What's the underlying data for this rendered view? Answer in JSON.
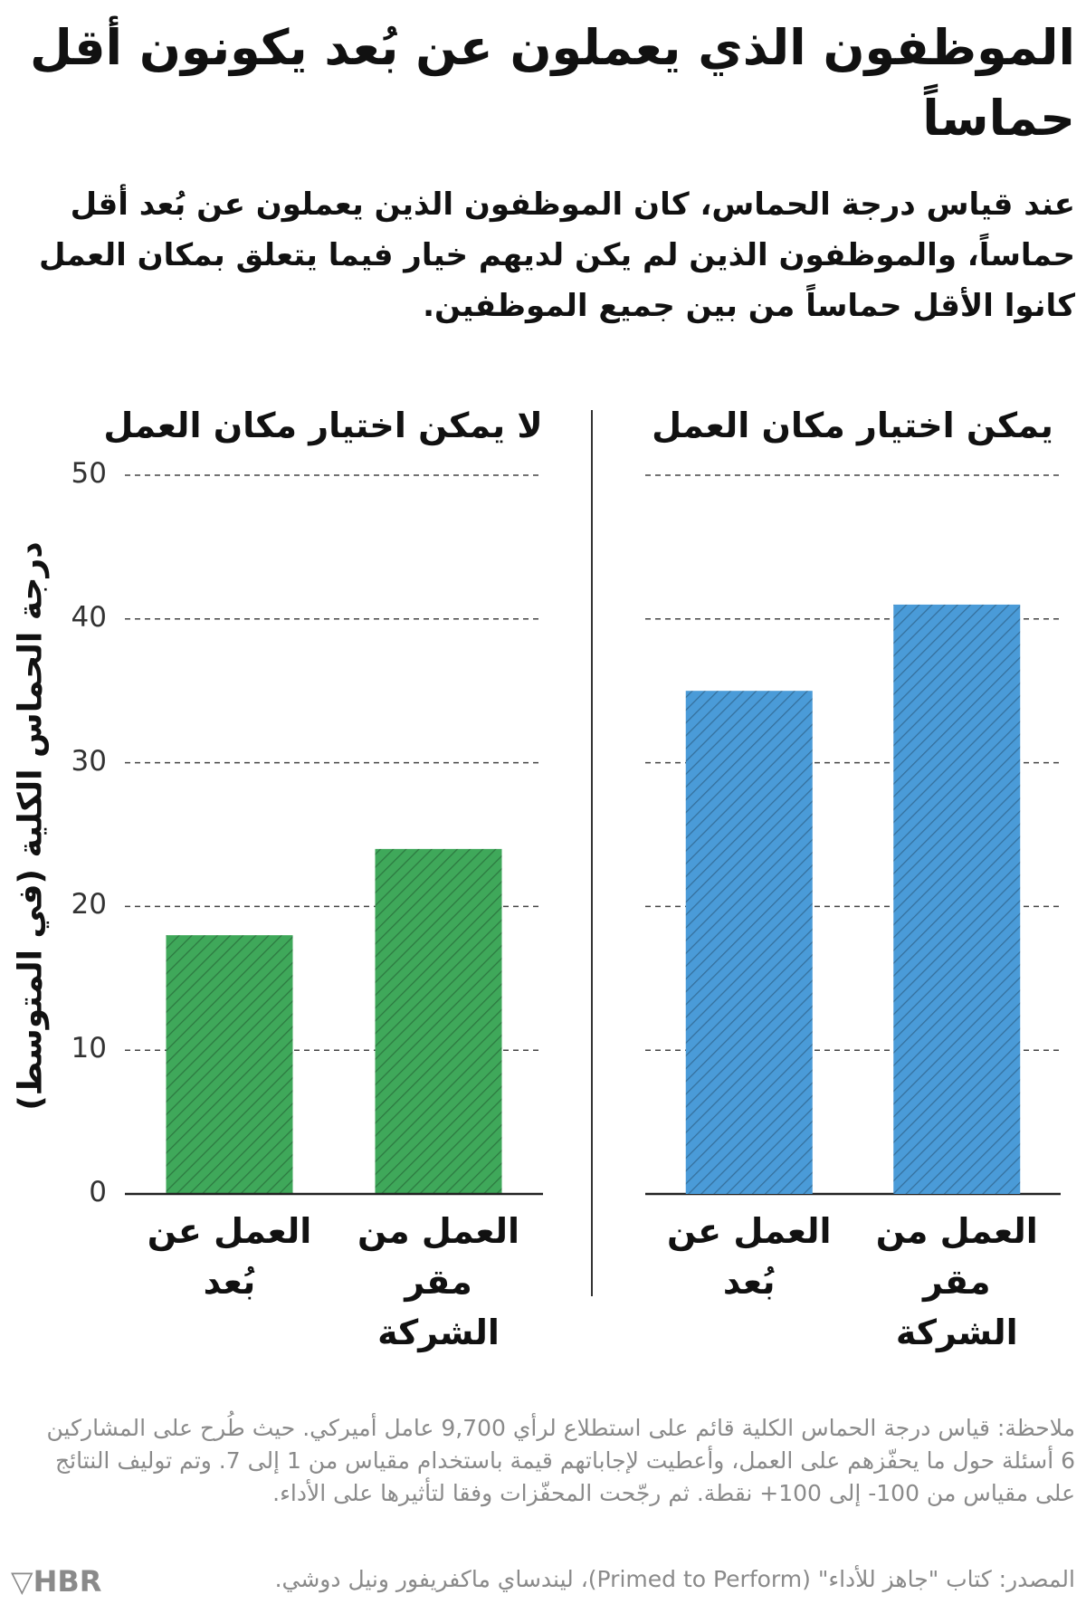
{
  "title": "الموظفون الذي يعملون عن بُعد يكونون أقل حماساً",
  "subtitle": "عند قياس درجة الحماس، كان الموظفون الذين يعملون عن بُعد أقل حماساً، والموظفون الذين لم يكن لديهم خيار فيما يتعلق بمكان العمل كانوا الأقل حماساً من بين جميع الموظفين.",
  "note": "ملاحظة: قياس درجة الحماس الكلية قائم على استطلاع لرأي 9,700 عامل أميركي. حيث طُرح على المشاركين 6 أسئلة حول ما يحفّزهم على العمل، وأعطيت لإجاباتهم قيمة باستخدام مقياس من 1 إلى 7. وتم توليف النتائج على مقياس من 100- إلى 100+ نقطة. ثم رجّحت المحفّزات وفقا لتأثيرها على الأداء.",
  "source": "المصدر: كتاب \"جاهز للأداء\" (Primed to Perform)، ليندساي ماكفريفور ونيل دوشي.",
  "logo": "HBR",
  "chart_data": [
    {
      "type": "bar",
      "title": "لا يمكن اختيار مكان العمل",
      "y_label": "درجة الحماس الكلية (في المتوسط)",
      "categories": [
        "العمل عن بُعد",
        "العمل من مقر الشركة"
      ],
      "values": [
        18,
        24
      ],
      "color": "#3fa85a",
      "ylim": [
        0,
        50
      ],
      "yticks": [
        0,
        10,
        20,
        30,
        40,
        50
      ],
      "grid": true
    },
    {
      "type": "bar",
      "title": "يمكن اختيار مكان العمل",
      "categories": [
        "العمل عن بُعد",
        "العمل من مقر الشركة"
      ],
      "values": [
        35,
        41
      ],
      "color": "#4a9bd8",
      "ylim": [
        0,
        50
      ],
      "yticks": [
        0,
        10,
        20,
        30,
        40,
        50
      ],
      "grid": true
    }
  ]
}
